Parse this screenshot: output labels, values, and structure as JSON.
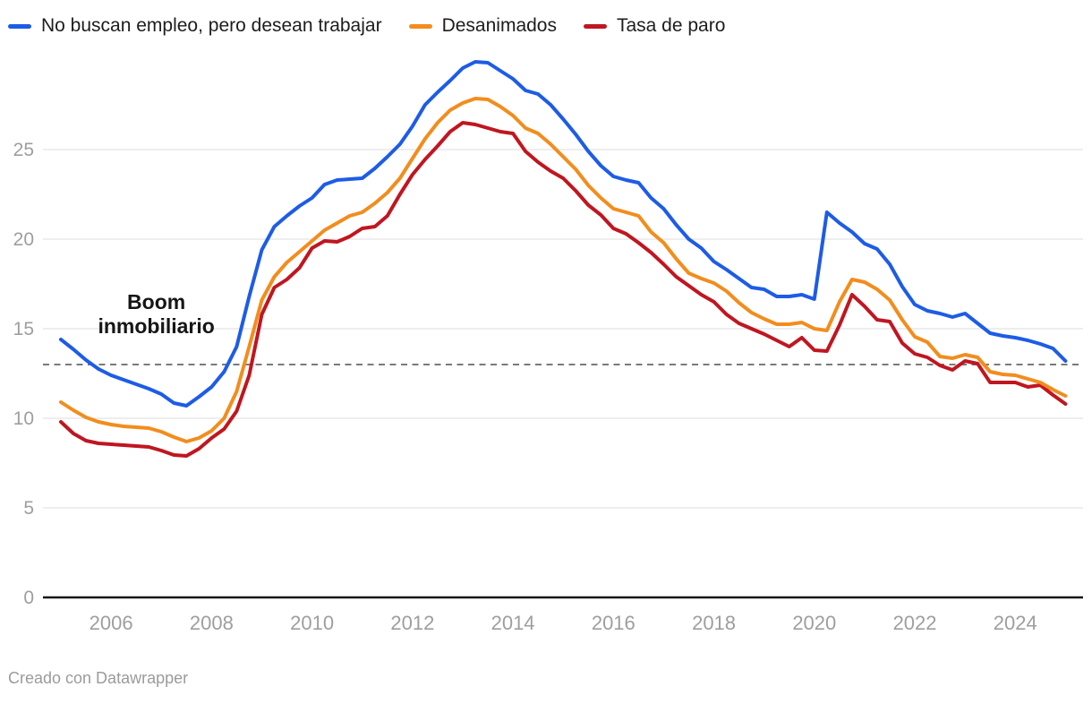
{
  "legend": {
    "items": [
      {
        "label": "No buscan empleo, pero desean trabajar",
        "color": "#1d5ce6"
      },
      {
        "label": "Desanimados",
        "color": "#f28d1d"
      },
      {
        "label": "Tasa de paro",
        "color": "#c01620"
      }
    ]
  },
  "footer": {
    "credit": "Creado con Datawrapper"
  },
  "colors": {
    "axis_label": "#9e9e9e",
    "gridline": "#e8e8e8",
    "zero_axis": "#141414",
    "reference_line": "#7a7a7a",
    "annotation_text": "#161616"
  },
  "chart_data": {
    "type": "line",
    "title": "",
    "xlabel": "",
    "ylabel": "",
    "x_axis": {
      "tick_years": [
        2006,
        2008,
        2010,
        2012,
        2014,
        2016,
        2018,
        2020,
        2022,
        2024
      ],
      "range_years": [
        2005.0,
        2025.25
      ]
    },
    "y_axis": {
      "ticks": [
        0,
        5,
        10,
        15,
        20,
        25
      ],
      "range": [
        0,
        30.3
      ],
      "grid": true
    },
    "reference_line": {
      "value": 13,
      "style": "dashed"
    },
    "annotation": {
      "text": "Boom inmobiliario",
      "x_year": 2006.9,
      "y_value": 16.5
    },
    "frequency": "quarterly",
    "start_year": 2005,
    "series": [
      {
        "name": "No buscan empleo, pero desean trabajar",
        "color": "#1d5ce6",
        "values": [
          14.4,
          13.85,
          13.25,
          12.75,
          12.4,
          12.15,
          11.9,
          11.65,
          11.35,
          10.85,
          10.7,
          11.2,
          11.75,
          12.6,
          14.0,
          16.8,
          19.4,
          20.7,
          21.3,
          21.85,
          22.3,
          23.05,
          23.3,
          23.35,
          23.4,
          23.95,
          24.6,
          25.3,
          26.3,
          27.5,
          28.2,
          28.85,
          29.55,
          29.9,
          29.85,
          29.4,
          28.95,
          28.3,
          28.1,
          27.5,
          26.7,
          25.85,
          24.9,
          24.1,
          23.5,
          23.3,
          23.15,
          22.3,
          21.7,
          20.8,
          20.0,
          19.5,
          18.75,
          18.3,
          17.8,
          17.3,
          17.2,
          16.8,
          16.8,
          16.9,
          16.65,
          21.5,
          20.9,
          20.4,
          19.75,
          19.45,
          18.6,
          17.35,
          16.35,
          16.0,
          15.85,
          15.65,
          15.85,
          15.3,
          14.75,
          14.6,
          14.5,
          14.35,
          14.15,
          13.9,
          13.2
        ]
      },
      {
        "name": "Desanimados",
        "color": "#f28d1d",
        "values": [
          10.9,
          10.45,
          10.05,
          9.8,
          9.65,
          9.55,
          9.5,
          9.45,
          9.25,
          8.95,
          8.7,
          8.9,
          9.3,
          10.0,
          11.5,
          14.0,
          16.6,
          17.9,
          18.7,
          19.3,
          19.9,
          20.5,
          20.9,
          21.3,
          21.5,
          22.0,
          22.6,
          23.4,
          24.5,
          25.6,
          26.5,
          27.2,
          27.6,
          27.85,
          27.8,
          27.4,
          26.9,
          26.2,
          25.9,
          25.3,
          24.6,
          23.9,
          23.0,
          22.3,
          21.7,
          21.5,
          21.3,
          20.4,
          19.8,
          18.9,
          18.1,
          17.8,
          17.55,
          17.1,
          16.45,
          15.9,
          15.55,
          15.25,
          15.25,
          15.35,
          15.0,
          14.9,
          16.5,
          17.75,
          17.6,
          17.2,
          16.6,
          15.5,
          14.55,
          14.25,
          13.45,
          13.35,
          13.55,
          13.4,
          12.6,
          12.45,
          12.4,
          12.2,
          12.0,
          11.6,
          11.25
        ]
      },
      {
        "name": "Tasa de paro",
        "color": "#c01620",
        "values": [
          9.8,
          9.15,
          8.75,
          8.6,
          8.55,
          8.5,
          8.45,
          8.4,
          8.2,
          7.95,
          7.9,
          8.3,
          8.9,
          9.4,
          10.4,
          12.4,
          15.8,
          17.3,
          17.75,
          18.4,
          19.5,
          19.9,
          19.85,
          20.15,
          20.6,
          20.7,
          21.3,
          22.5,
          23.6,
          24.45,
          25.2,
          26.0,
          26.5,
          26.4,
          26.2,
          26.0,
          25.9,
          24.9,
          24.3,
          23.8,
          23.4,
          22.7,
          21.9,
          21.35,
          20.6,
          20.3,
          19.8,
          19.25,
          18.6,
          17.9,
          17.4,
          16.9,
          16.5,
          15.8,
          15.3,
          15.0,
          14.7,
          14.35,
          14.0,
          14.5,
          13.8,
          13.75,
          15.2,
          16.9,
          16.25,
          15.5,
          15.4,
          14.2,
          13.6,
          13.4,
          12.95,
          12.7,
          13.2,
          13.05,
          12.0,
          12.0,
          12.0,
          11.75,
          11.85,
          11.3,
          10.8
        ]
      }
    ]
  }
}
